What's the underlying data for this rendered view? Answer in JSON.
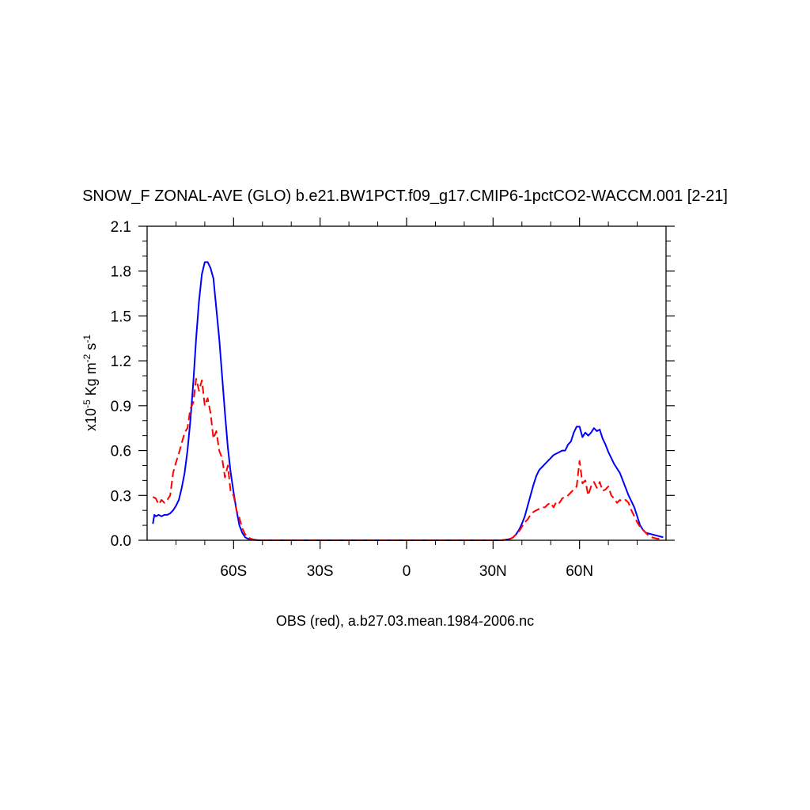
{
  "chart_data": {
    "type": "line",
    "title": "SNOW_F ZONAL-AVE (GLO) b.e21.BW1PCT.f09_g17.CMIP6-1pctCO2-WACCM.001 [2-21]",
    "xlabel": "OBS (red), a.b27.03.mean.1984-2006.nc",
    "ylabel": {
      "prefix": "x10",
      "prefix_exp": "-5",
      "unit1": " Kg m",
      "unit1_exp": "-2",
      "unit2": " s",
      "unit2_exp": "-1"
    },
    "xlim": [
      -90,
      90
    ],
    "ylim": [
      0,
      2.1
    ],
    "x_ticks": [
      {
        "value": -60,
        "label": "60S"
      },
      {
        "value": -30,
        "label": "30S"
      },
      {
        "value": 0,
        "label": "0"
      },
      {
        "value": 30,
        "label": "30N"
      },
      {
        "value": 60,
        "label": "60N"
      }
    ],
    "y_ticks": [
      {
        "value": 0.0,
        "label": "0.0"
      },
      {
        "value": 0.3,
        "label": "0.3"
      },
      {
        "value": 0.6,
        "label": "0.6"
      },
      {
        "value": 0.9,
        "label": "0.9"
      },
      {
        "value": 1.2,
        "label": "1.2"
      },
      {
        "value": 1.5,
        "label": "1.5"
      },
      {
        "value": 1.8,
        "label": "1.8"
      },
      {
        "value": 2.1,
        "label": "2.1"
      }
    ],
    "grid": false,
    "legend": "none",
    "series": [
      {
        "color": "#0000ff",
        "dash": "solid",
        "x": [
          -88,
          -87.5,
          -87,
          -86,
          -85,
          -84,
          -83,
          -82,
          -81,
          -80,
          -79,
          -78,
          -77,
          -76,
          -75,
          -74,
          -73,
          -72,
          -71,
          -70,
          -69,
          -68,
          -67,
          -66,
          -65,
          -64,
          -63,
          -62,
          -61,
          -60,
          -59,
          -58,
          -57,
          -56,
          -55,
          -54,
          -53,
          -52,
          -51,
          -50,
          -49,
          -48,
          -47,
          -46,
          -45,
          -44,
          -43,
          -40,
          -35,
          -30,
          -20,
          -10,
          0,
          10,
          20,
          30,
          33,
          35,
          36,
          37,
          38,
          39,
          40,
          41,
          42,
          43,
          44,
          45,
          46,
          47,
          48,
          49,
          50,
          51,
          52,
          53,
          54,
          55,
          56,
          57,
          58,
          59,
          60,
          61,
          62,
          63,
          64,
          65,
          66,
          67,
          68,
          69,
          70,
          71,
          72,
          73,
          74,
          75,
          76,
          77,
          78,
          79,
          80,
          81,
          82,
          83,
          84,
          85,
          86,
          87,
          88,
          89
        ],
        "y": [
          0.11,
          0.17,
          0.16,
          0.17,
          0.16,
          0.17,
          0.17,
          0.18,
          0.2,
          0.23,
          0.27,
          0.35,
          0.45,
          0.6,
          0.8,
          1.05,
          1.35,
          1.6,
          1.78,
          1.86,
          1.86,
          1.82,
          1.75,
          1.55,
          1.35,
          1.1,
          0.85,
          0.62,
          0.45,
          0.32,
          0.2,
          0.1,
          0.05,
          0.02,
          0.01,
          0.005,
          0.002,
          0.001,
          0.0,
          0.0,
          0.0,
          0.0,
          0.0,
          0.0,
          0.0,
          0.0,
          0.0,
          0.0,
          0.0,
          0.0,
          0.0,
          0.0,
          0.0,
          0.0,
          0.0,
          0.0,
          0.0,
          0.005,
          0.01,
          0.02,
          0.04,
          0.07,
          0.11,
          0.16,
          0.23,
          0.3,
          0.37,
          0.43,
          0.47,
          0.49,
          0.51,
          0.53,
          0.55,
          0.57,
          0.58,
          0.59,
          0.6,
          0.6,
          0.64,
          0.66,
          0.72,
          0.76,
          0.76,
          0.69,
          0.72,
          0.7,
          0.72,
          0.75,
          0.73,
          0.74,
          0.68,
          0.64,
          0.59,
          0.55,
          0.51,
          0.48,
          0.45,
          0.4,
          0.35,
          0.3,
          0.26,
          0.22,
          0.16,
          0.1,
          0.07,
          0.05,
          0.045,
          0.04,
          0.035,
          0.03,
          0.025,
          0.02
        ]
      },
      {
        "color": "#ff0000",
        "dash": "dashed",
        "x": [
          -88,
          -87,
          -86,
          -85,
          -84,
          -83,
          -82,
          -81,
          -80,
          -79,
          -78,
          -77,
          -76,
          -75,
          -74,
          -73,
          -72,
          -71,
          -70,
          -69,
          -68,
          -67,
          -66,
          -65,
          -64,
          -63,
          -62,
          -61,
          -60,
          -59,
          -58,
          -57,
          -56,
          -55,
          -54,
          -53,
          -52,
          -50,
          -45,
          -40,
          -30,
          -20,
          -10,
          0,
          10,
          20,
          30,
          33,
          35,
          36,
          37,
          38,
          39,
          40,
          41,
          42,
          43,
          44,
          45,
          46,
          47,
          48,
          49,
          50,
          51,
          52,
          53,
          54,
          55,
          56,
          57,
          58,
          59,
          60,
          61,
          62,
          63,
          64,
          65,
          66,
          67,
          68,
          69,
          70,
          71,
          72,
          73,
          74,
          75,
          76,
          77,
          78,
          79,
          80,
          81,
          82,
          83,
          84,
          85,
          86,
          87,
          88,
          89
        ],
        "y": [
          0.29,
          0.28,
          0.24,
          0.27,
          0.25,
          0.27,
          0.3,
          0.45,
          0.52,
          0.58,
          0.65,
          0.72,
          0.75,
          0.88,
          0.92,
          1.08,
          1.0,
          1.07,
          0.9,
          0.95,
          0.85,
          0.68,
          0.73,
          0.6,
          0.55,
          0.42,
          0.5,
          0.32,
          0.3,
          0.2,
          0.15,
          0.08,
          0.04,
          0.02,
          0.01,
          0.005,
          0.002,
          0.0,
          0.0,
          0.0,
          0.0,
          0.0,
          0.0,
          0.0,
          0.0,
          0.0,
          0.0,
          0.0,
          0.005,
          0.01,
          0.02,
          0.04,
          0.06,
          0.09,
          0.12,
          0.14,
          0.17,
          0.19,
          0.2,
          0.21,
          0.22,
          0.22,
          0.24,
          0.25,
          0.22,
          0.26,
          0.25,
          0.28,
          0.29,
          0.3,
          0.32,
          0.34,
          0.36,
          0.53,
          0.38,
          0.4,
          0.3,
          0.36,
          0.39,
          0.35,
          0.39,
          0.33,
          0.34,
          0.36,
          0.3,
          0.28,
          0.25,
          0.27,
          0.26,
          0.27,
          0.25,
          0.2,
          0.16,
          0.12,
          0.09,
          0.07,
          0.05,
          0.03,
          0.02,
          0.015,
          0.01,
          0.01,
          0.01
        ]
      }
    ]
  }
}
